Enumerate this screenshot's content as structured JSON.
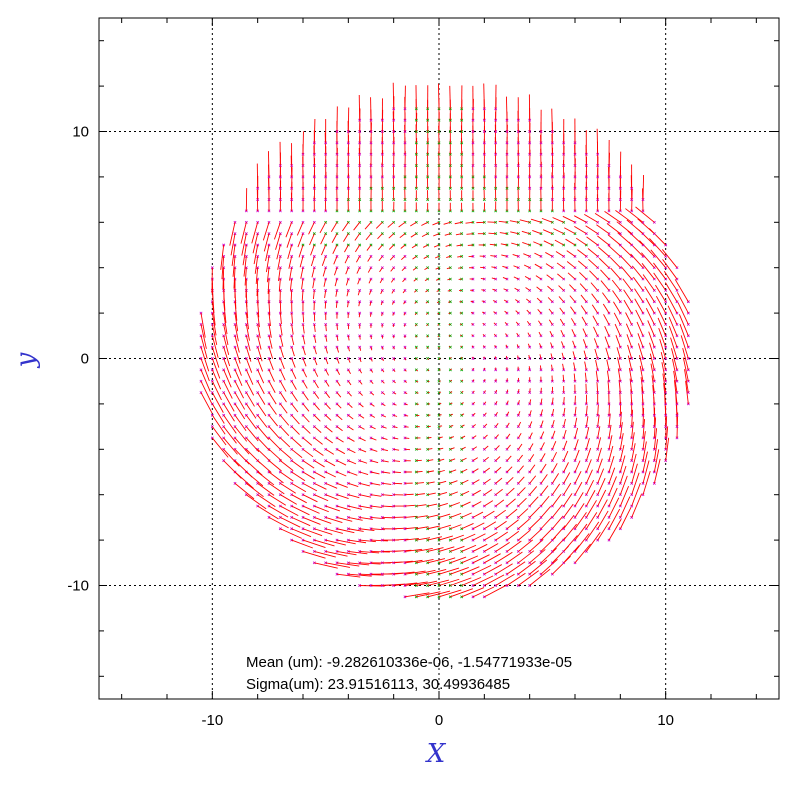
{
  "chart_data": {
    "type": "vector_field",
    "title": "",
    "xlabel": "X",
    "ylabel": "y",
    "xlim": [
      -15,
      15
    ],
    "ylim": [
      -15,
      15
    ],
    "xticks": [
      -10,
      0,
      10
    ],
    "yticks": [
      -10,
      0,
      10
    ],
    "grid": true,
    "grid_values": [
      -10,
      0,
      10
    ],
    "field": {
      "center": [
        0.3,
        0.3
      ],
      "radius": 11.0,
      "spacing": 0.5,
      "arrow_color": "#ff0000",
      "marker_color_inner": "#00aa00",
      "marker_color_outer": "#cc00cc"
    },
    "annotations": [
      "Mean (um): -9.282610336e-06, -1.54771933e-05",
      "Sigma(um): 23.91516113, 30.49936485"
    ],
    "colors": {
      "axis_title": "#3333cc",
      "grid": "#000000",
      "frame": "#000000"
    }
  }
}
